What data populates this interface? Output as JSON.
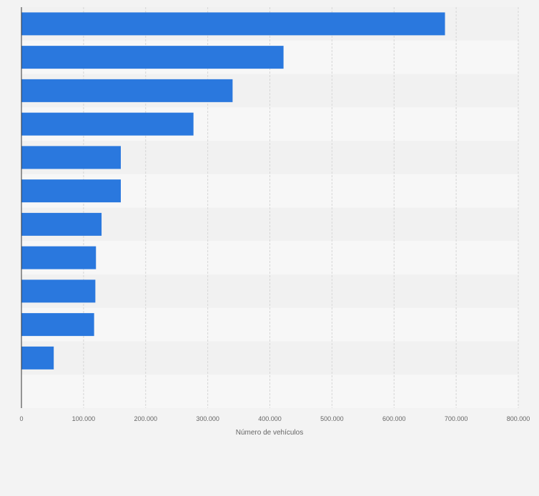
{
  "chart_data": {
    "type": "bar",
    "orientation": "horizontal",
    "categories": [
      "",
      "",
      "",
      "",
      "",
      "",
      "",
      "",
      "",
      "",
      "",
      ""
    ],
    "values": [
      682000,
      422000,
      340000,
      277000,
      160000,
      160000,
      129000,
      120000,
      119000,
      117000,
      52000,
      0
    ],
    "title": "",
    "xlabel": "Número de vehículos",
    "ylabel": "",
    "xlim": [
      0,
      800000
    ],
    "ticks": [
      0,
      100000,
      200000,
      300000,
      400000,
      500000,
      600000,
      700000,
      800000
    ],
    "tick_labels": [
      "0",
      "100.000",
      "200.000",
      "300.000",
      "400.000",
      "500.000",
      "600.000",
      "700.000",
      "800.000"
    ],
    "grid": true,
    "legend": "none",
    "colors": {
      "bar": "#2a78de",
      "band_light": "#f7f7f7",
      "band_dark": "#f1f1f1",
      "grid": "#d6d6d6",
      "axis": "#333333",
      "tick_text": "#666666",
      "background": "#f3f3f3"
    }
  }
}
